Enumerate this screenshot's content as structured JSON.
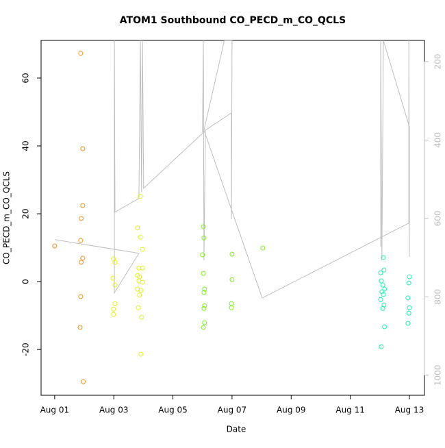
{
  "chart_data": {
    "type": "scatter",
    "title": "ATOM1 Southbound CO_PECD_m_CO_QCLS",
    "x_label": "Date",
    "y_label": "CO_PECD_m_CO_QCLS",
    "xlim": [
      0.54,
      13.51
    ],
    "xticks": [
      {
        "value": 1,
        "label": "Aug 01"
      },
      {
        "value": 3,
        "label": "Aug 03"
      },
      {
        "value": 5,
        "label": "Aug 05"
      },
      {
        "value": 7,
        "label": "Aug 07"
      },
      {
        "value": 9,
        "label": "Aug 09"
      },
      {
        "value": 11,
        "label": "Aug 11"
      },
      {
        "value": 13,
        "label": "Aug 13"
      }
    ],
    "ylim": [
      -33.5,
      71.1
    ],
    "yticks": [
      -20,
      0,
      20,
      40,
      60
    ],
    "y2lim": [
      1051,
      146
    ],
    "y2ticks": [
      200,
      400,
      600,
      800,
      1000
    ],
    "y2_color": "#bebebe",
    "series": [
      {
        "type": "line",
        "axis": "y2",
        "color": "#bebebe",
        "x": [
          1.0,
          3.85,
          3.02,
          3.02,
          3.04,
          3.85,
          3.9,
          3.94,
          3.97,
          4.01,
          6.0,
          6.03,
          6.05,
          6.1,
          6.98,
          6.98,
          7.0,
          6.74,
          6.05,
          8.02,
          12.98,
          12.98,
          13.0,
          13.0,
          12.12,
          12.07,
          12.03,
          12.03
        ],
        "values": [
          654,
          689,
          790,
          146,
          584,
          549,
          146,
          532,
          146,
          523,
          383,
          146,
          707,
          375,
          331,
          602,
          146,
          146,
          375,
          803,
          612,
          146,
          698,
          366,
          146,
          707,
          146,
          672
        ]
      },
      {
        "type": "scatter",
        "color": "#f0901e",
        "x": [
          1.0,
          1.88,
          1.95,
          1.95,
          1.9,
          1.88,
          1.95,
          1.9,
          1.88,
          1.86,
          1.97
        ],
        "values": [
          10.5,
          67.3,
          39.2,
          22.4,
          18.6,
          12.1,
          6.9,
          5.7,
          -4.4,
          -13.5,
          -29.5
        ]
      },
      {
        "type": "scatter",
        "color": "#e2f020",
        "x": [
          2.99,
          3.04,
          2.97,
          3.04,
          3.04,
          2.99,
          2.99,
          3.9,
          3.8,
          3.9,
          3.97,
          3.85,
          3.97,
          3.8,
          3.87,
          3.85,
          3.97,
          3.8,
          3.92,
          3.87,
          3.83,
          3.94,
          3.92
        ],
        "values": [
          6.7,
          5.7,
          1.0,
          -1.0,
          -6.5,
          -8.1,
          -9.7,
          25.1,
          15.8,
          13.1,
          9.5,
          4.0,
          4.0,
          1.8,
          1.4,
          0.2,
          -0.2,
          -2.2,
          -2.6,
          -4.0,
          -7.7,
          -10.5,
          -21.4
        ]
      },
      {
        "type": "scatter",
        "color": "#7ef020",
        "x": [
          6.03,
          6.05,
          6.0,
          6.03,
          6.07,
          6.05,
          6.07,
          6.05,
          6.07,
          6.03,
          7.0,
          7.0,
          6.98,
          6.98,
          8.04
        ],
        "values": [
          16.2,
          12.9,
          7.9,
          2.4,
          -2.2,
          -3.2,
          -7.1,
          -7.9,
          -12.1,
          -13.5,
          8.1,
          0.6,
          -6.5,
          -7.7,
          9.9
        ]
      },
      {
        "type": "scatter",
        "color": "#20f0b4",
        "x": [
          12.12,
          12.14,
          12.03,
          12.05,
          12.1,
          12.16,
          12.07,
          12.12,
          12.03,
          12.14,
          12.1,
          12.16,
          12.05,
          13.0,
          12.98,
          12.95,
          13.0,
          12.98,
          12.95
        ],
        "values": [
          7.1,
          3.4,
          2.6,
          0.2,
          -1.0,
          -2.2,
          -3.0,
          -3.8,
          -5.3,
          -6.9,
          -7.9,
          -13.3,
          -19.2,
          1.4,
          -0.4,
          -4.8,
          -7.7,
          -9.3,
          -12.3
        ]
      }
    ]
  }
}
